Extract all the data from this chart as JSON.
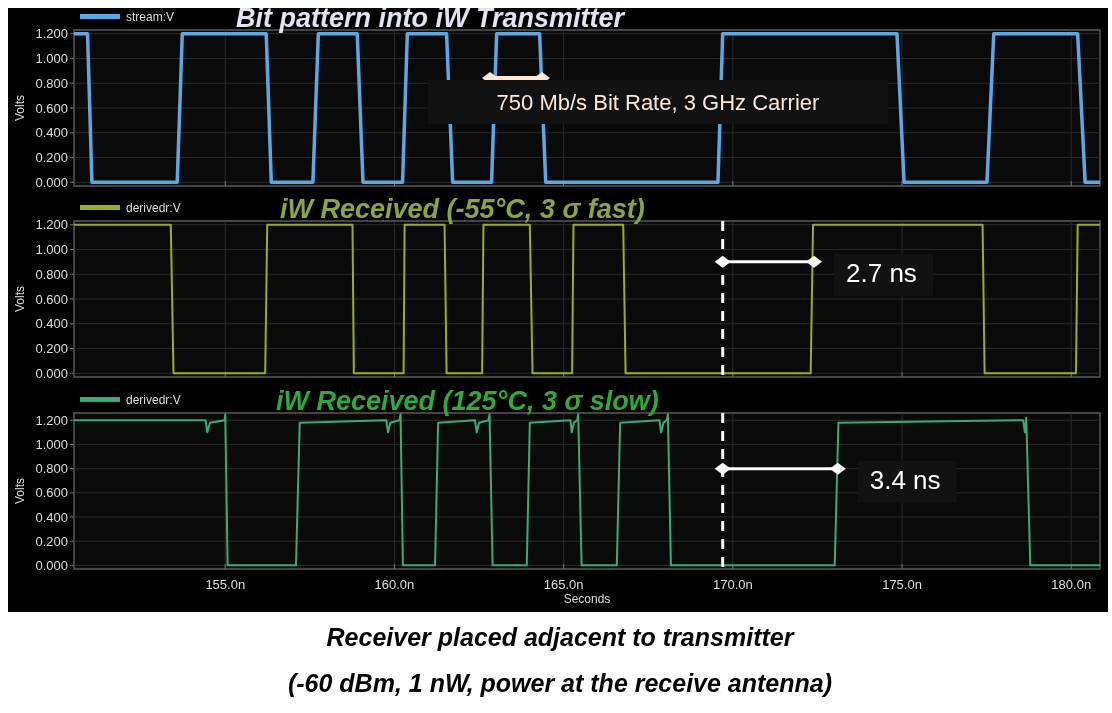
{
  "chart_data": [
    {
      "type": "line",
      "title": "Bit pattern into iW Transmitter",
      "ylabel": "Volts",
      "legend": "top left",
      "grid": true,
      "tick_labels": "y",
      "xlim": [
        150.53,
        180.85
      ],
      "ylim": [
        -0.03,
        1.23
      ],
      "xticks": [
        {
          "value": 155,
          "label": null
        },
        {
          "value": 160,
          "label": null
        },
        {
          "value": 165,
          "label": null
        },
        {
          "value": 170,
          "label": null
        },
        {
          "value": 175,
          "label": null
        },
        {
          "value": 180,
          "label": null
        }
      ],
      "yticks": [
        {
          "value": 0,
          "label": "0.000"
        },
        {
          "value": 0.2,
          "label": "0.200"
        },
        {
          "value": 0.4,
          "label": "0.400"
        },
        {
          "value": 0.6,
          "label": "0.600"
        },
        {
          "value": 0.8,
          "label": "0.800"
        },
        {
          "value": 1,
          "label": "1.000"
        },
        {
          "value": 1.2,
          "label": "1.200"
        }
      ],
      "series": [
        {
          "name": "stream:V",
          "color": "#5aa9e6",
          "x": [
            150.53,
            150.93,
            151.06,
            153.58,
            153.73,
            156.21,
            156.36,
            157.59,
            157.75,
            158.9,
            159.07,
            160.24,
            160.38,
            161.54,
            161.72,
            162.87,
            163.02,
            164.29,
            164.47,
            169.56,
            169.7,
            174.85,
            175.06,
            177.51,
            177.71,
            180.19,
            180.41,
            180.85
          ],
          "values": [
            1.2,
            1.2,
            0,
            0,
            1.2,
            1.2,
            0,
            0,
            1.2,
            1.2,
            0,
            0,
            1.2,
            1.2,
            0,
            0,
            1.2,
            1.2,
            0,
            0,
            1.2,
            1.2,
            0,
            0,
            1.2,
            1.2,
            0,
            0
          ]
        }
      ],
      "annotations": [
        "750 Mb/s Bit Rate, 3 GHz Carrier"
      ]
    },
    {
      "type": "line",
      "title": "iW Received (-55°C, 3 σ fast)",
      "ylabel": "Volts",
      "legend": "top left",
      "grid": true,
      "tick_labels": "y",
      "xlim": [
        150.53,
        180.85
      ],
      "ylim": [
        -0.03,
        1.23
      ],
      "xticks": [
        {
          "value": 155,
          "label": null
        },
        {
          "value": 160,
          "label": null
        },
        {
          "value": 165,
          "label": null
        },
        {
          "value": 170,
          "label": null
        },
        {
          "value": 175,
          "label": null
        },
        {
          "value": 180,
          "label": null
        }
      ],
      "yticks": [
        {
          "value": 0,
          "label": "0.000"
        },
        {
          "value": 0.2,
          "label": "0.200"
        },
        {
          "value": 0.4,
          "label": "0.400"
        },
        {
          "value": 0.6,
          "label": "0.600"
        },
        {
          "value": 0.8,
          "label": "0.800"
        },
        {
          "value": 1,
          "label": "1.000"
        },
        {
          "value": 1.2,
          "label": "1.200"
        }
      ],
      "series": [
        {
          "name": "derivedr:V",
          "color": "#9ab01a",
          "x": [
            150.53,
            153.39,
            153.47,
            156.18,
            156.24,
            158.76,
            158.8,
            160.27,
            160.3,
            161.48,
            161.54,
            162.59,
            162.63,
            164.0,
            164.08,
            165.25,
            165.29,
            166.76,
            166.83,
            172.3,
            172.37,
            177.38,
            177.44,
            180.14,
            180.19,
            180.85
          ],
          "values": [
            1.2,
            1.2,
            0,
            0,
            1.2,
            1.2,
            0,
            0,
            1.2,
            1.2,
            0,
            0,
            1.2,
            1.2,
            0,
            0,
            1.2,
            1.2,
            0,
            0,
            1.2,
            1.2,
            0,
            0,
            1.2,
            1.2
          ]
        }
      ],
      "ref_lines": [
        {
          "axis": "x",
          "value": 169.7,
          "label": null,
          "color": "#ffffff",
          "line_style": "dashed"
        }
      ],
      "annotations": [
        {
          "text": "2.7 ns",
          "x": 172.4,
          "y": 0.9
        }
      ]
    },
    {
      "type": "line",
      "title": "iW Received (125°C, 3 σ slow)",
      "ylabel": "Volts",
      "xlabel": "Seconds",
      "legend": "top left",
      "grid": true,
      "xlim": [
        150.53,
        180.85
      ],
      "ylim": [
        -0.03,
        1.26
      ],
      "xticks": [
        {
          "value": 155,
          "label": "155.0n"
        },
        {
          "value": 160,
          "label": "160.0n"
        },
        {
          "value": 165,
          "label": "165.0n"
        },
        {
          "value": 170,
          "label": "170.0n"
        },
        {
          "value": 175,
          "label": "175.0n"
        },
        {
          "value": 180,
          "label": "180.0n"
        }
      ],
      "yticks": [
        {
          "value": 0,
          "label": "0.000"
        },
        {
          "value": 0.2,
          "label": "0.200"
        },
        {
          "value": 0.4,
          "label": "0.400"
        },
        {
          "value": 0.6,
          "label": "0.600"
        },
        {
          "value": 0.8,
          "label": "0.800"
        },
        {
          "value": 1,
          "label": "1.000"
        },
        {
          "value": 1.2,
          "label": "1.200"
        }
      ],
      "series": [
        {
          "name": "derivedr:V",
          "color": "#3aaa78",
          "x": [
            150.53,
            154.42,
            154.47,
            154.55,
            154.98,
            155.0,
            155.07,
            157.09,
            157.2,
            159.76,
            159.81,
            159.88,
            160.15,
            160.18,
            160.25,
            161.2,
            161.29,
            162.38,
            162.43,
            162.5,
            162.78,
            162.81,
            162.9,
            163.91,
            164.0,
            165.2,
            165.24,
            165.3,
            165.4,
            165.43,
            165.53,
            166.57,
            166.67,
            167.83,
            167.88,
            167.95,
            168.05,
            168.08,
            168.17,
            173.01,
            173.12,
            178.58,
            178.63,
            178.67,
            178.79,
            180.85
          ],
          "values": [
            1.2,
            1.2,
            1.1,
            1.18,
            1.2,
            1.25,
            0,
            0,
            1.18,
            1.2,
            1.1,
            1.18,
            1.2,
            1.25,
            0,
            0,
            1.18,
            1.2,
            1.1,
            1.18,
            1.2,
            1.25,
            0,
            0,
            1.18,
            1.2,
            1.1,
            1.18,
            1.2,
            1.25,
            0,
            0,
            1.18,
            1.2,
            1.1,
            1.18,
            1.2,
            1.25,
            0,
            0,
            1.18,
            1.2,
            1.1,
            1.22,
            0,
            0
          ]
        }
      ],
      "ref_lines": [
        {
          "axis": "x",
          "value": 169.7,
          "label": null,
          "color": "#ffffff",
          "line_style": "dashed"
        }
      ],
      "annotations": [
        {
          "text": "3.4 ns",
          "x": 173.1,
          "y": 0.8
        },
        "Receiver placed adjacent to transmitter",
        "(-60 dBm, 1 nW, power at the receive antenna)"
      ]
    }
  ]
}
